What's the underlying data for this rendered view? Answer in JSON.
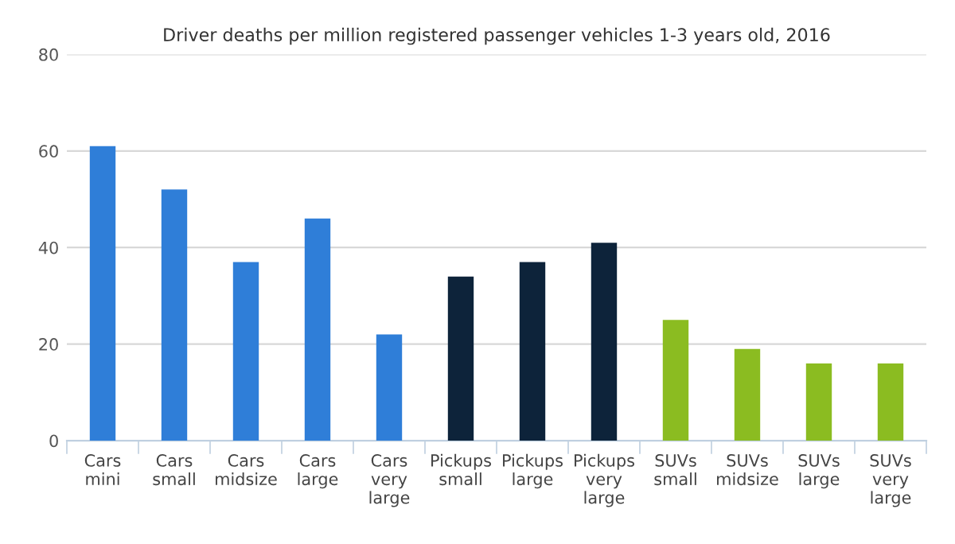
{
  "chart_data": {
    "type": "bar",
    "title": "Driver deaths per million registered passenger vehicles 1-3 years old, 2016",
    "categories": [
      "Cars\nmini",
      "Cars\nsmall",
      "Cars\nmidsize",
      "Cars\nlarge",
      "Cars\nvery\nlarge",
      "Pickups\nsmall",
      "Pickups\nlarge",
      "Pickups\nvery\nlarge",
      "SUVs\nsmall",
      "SUVs\nmidsize",
      "SUVs\nlarge",
      "SUVs\nvery\nlarge"
    ],
    "values": [
      61,
      52,
      37,
      46,
      22,
      34,
      37,
      41,
      25,
      19,
      16,
      16
    ],
    "colors": [
      "#2f7ed8",
      "#2f7ed8",
      "#2f7ed8",
      "#2f7ed8",
      "#2f7ed8",
      "#0d233a",
      "#0d233a",
      "#0d233a",
      "#8bbc21",
      "#8bbc21",
      "#8bbc21",
      "#8bbc21"
    ],
    "ylim": [
      0,
      80
    ],
    "yticks": [
      0,
      20,
      40,
      60,
      80
    ],
    "grid": "y",
    "legend": false
  }
}
